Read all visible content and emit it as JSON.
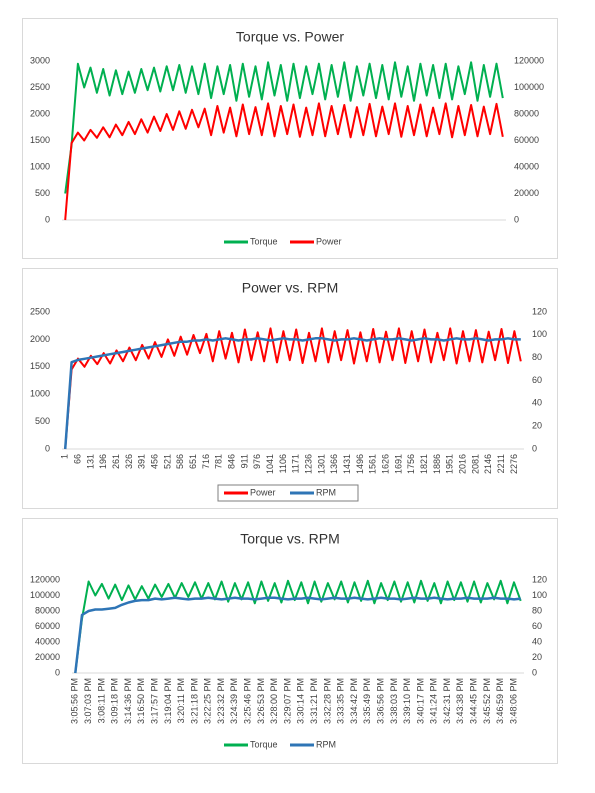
{
  "chart_data": [
    {
      "type": "line",
      "title": "Torque vs. Power",
      "legend": "bottom",
      "ylim": [
        0,
        3000
      ],
      "yticks": [
        0,
        500,
        1000,
        1500,
        2000,
        2500,
        3000
      ],
      "y2lim": [
        0,
        120000
      ],
      "y2ticks": [
        0,
        20000,
        40000,
        60000,
        80000,
        100000,
        120000
      ],
      "series": [
        {
          "name": "Torque",
          "color": "#00b050",
          "axis": "y2",
          "values": [
            20000,
            56000,
            118000,
            100000,
            115000,
            96000,
            114000,
            94000,
            113000,
            95000,
            112000,
            96000,
            114000,
            98000,
            115000,
            97000,
            116000,
            98000,
            117000,
            96000,
            116000,
            95000,
            118000,
            92000,
            116000,
            95000,
            117000,
            90000,
            118000,
            93000,
            116000,
            91000,
            119000,
            94000,
            117000,
            90000,
            118000,
            92000,
            116000,
            95000,
            118000,
            91000,
            117000,
            93000,
            119000,
            90000,
            116000,
            94000,
            118000,
            92000,
            117000,
            91000,
            119000,
            93000,
            116000,
            90000,
            118000,
            94000,
            117000,
            92000,
            118000,
            91000,
            116000,
            95000,
            119000,
            90000,
            117000,
            93000,
            118000,
            92000
          ]
        },
        {
          "name": "Power",
          "color": "#ff0000",
          "values": [
            0,
            1450,
            1650,
            1500,
            1700,
            1550,
            1750,
            1560,
            1800,
            1600,
            1850,
            1620,
            1900,
            1650,
            1950,
            1680,
            2000,
            1700,
            2050,
            1720,
            2080,
            1750,
            2100,
            1600,
            2150,
            1650,
            2120,
            1580,
            2180,
            1620,
            2130,
            1600,
            2200,
            1580,
            2150,
            1620,
            2180,
            1570,
            2120,
            1600,
            2200,
            1580,
            2150,
            1620,
            2170,
            1560,
            2130,
            1600,
            2190,
            1580,
            2140,
            1620,
            2200,
            1570,
            2150,
            1600,
            2180,
            1580,
            2120,
            1620,
            2200,
            1560,
            2150,
            1600,
            2170,
            1580,
            2140,
            1620,
            2190,
            1570
          ]
        }
      ]
    },
    {
      "type": "line",
      "title": "Power vs. RPM",
      "legend": "bottom",
      "ylim": [
        0,
        2500
      ],
      "yticks": [
        0,
        500,
        1000,
        1500,
        2000,
        2500
      ],
      "y2lim": [
        0,
        120
      ],
      "y2ticks": [
        0,
        20,
        40,
        60,
        80,
        100,
        120
      ],
      "categories": [
        "1",
        null,
        "66",
        null,
        "131",
        null,
        "196",
        null,
        "261",
        null,
        "326",
        null,
        "391",
        null,
        "456",
        null,
        "521",
        null,
        "586",
        null,
        "651",
        null,
        "716",
        null,
        "781",
        null,
        "846",
        null,
        "911",
        null,
        "976",
        null,
        "1041",
        null,
        "1106",
        null,
        "1171",
        null,
        "1236",
        null,
        "1301",
        null,
        "1366",
        null,
        "1431",
        null,
        "1496",
        null,
        "1561",
        null,
        "1626",
        null,
        "1691",
        null,
        "1756",
        null,
        "1821",
        null,
        "1886",
        null,
        "1951",
        null,
        "2016",
        null,
        "2081",
        null,
        "2146",
        null,
        "2211",
        null,
        "2276",
        null
      ],
      "series": [
        {
          "name": "Power",
          "color": "#ff0000",
          "values": [
            0,
            1450,
            1650,
            1500,
            1700,
            1550,
            1750,
            1560,
            1800,
            1600,
            1850,
            1620,
            1900,
            1650,
            1950,
            1680,
            2000,
            1700,
            2050,
            1720,
            2080,
            1750,
            2100,
            1600,
            2150,
            1650,
            2120,
            1580,
            2180,
            1620,
            2130,
            1600,
            2200,
            1580,
            2150,
            1620,
            2180,
            1570,
            2120,
            1600,
            2200,
            1580,
            2150,
            1620,
            2170,
            1560,
            2130,
            1600,
            2190,
            1580,
            2140,
            1620,
            2200,
            1570,
            2150,
            1600,
            2180,
            1580,
            2120,
            1620,
            2200,
            1560,
            2150,
            1600,
            2170,
            1580,
            2140,
            1620,
            2190,
            1570,
            2150,
            1600
          ]
        },
        {
          "name": "RPM",
          "color": "#2e75b6",
          "axis": "y2",
          "values": [
            0,
            76,
            78,
            79,
            80,
            81,
            82,
            83,
            84,
            85,
            86,
            87,
            88,
            89,
            90,
            91,
            92,
            93,
            94,
            94,
            95,
            95,
            96,
            95,
            96,
            97,
            96,
            95,
            96,
            96,
            97,
            96,
            95,
            96,
            97,
            96,
            96,
            95,
            96,
            97,
            97,
            96,
            95,
            96,
            96,
            97,
            96,
            95,
            96,
            97,
            96,
            96,
            97,
            96,
            95,
            96,
            97,
            96,
            96,
            95,
            96,
            97,
            96,
            96,
            97,
            96,
            95,
            96,
            96,
            97,
            96,
            96
          ]
        }
      ]
    },
    {
      "type": "line",
      "title": "Torque vs. RPM",
      "legend": "bottom",
      "ylim": [
        0,
        120000
      ],
      "yticks": [
        0,
        20000,
        40000,
        60000,
        80000,
        100000,
        120000
      ],
      "y2lim": [
        0,
        120
      ],
      "y2ticks": [
        0,
        20,
        40,
        60,
        80,
        100,
        120
      ],
      "categories": [
        "3:05:56 PM",
        null,
        "3:07:03 PM",
        null,
        "3:08:11 PM",
        null,
        "3:09:18 PM",
        null,
        "3:14:36 PM",
        null,
        "3:16:50 PM",
        null,
        "3:17:57 PM",
        null,
        "3:19:04 PM",
        null,
        "3:20:11 PM",
        null,
        "3:21:18 PM",
        null,
        "3:22:25 PM",
        null,
        "3:23:32 PM",
        null,
        "3:24:39 PM",
        null,
        "3:25:46 PM",
        null,
        "3:26:53 PM",
        null,
        "3:28:00 PM",
        null,
        "3:29:07 PM",
        null,
        "3:30:14 PM",
        null,
        "3:31:21 PM",
        null,
        "3:32:28 PM",
        null,
        "3:33:35 PM",
        null,
        "3:34:42 PM",
        null,
        "3:35:49 PM",
        null,
        "3:36:56 PM",
        null,
        "3:38:03 PM",
        null,
        "3:39:10 PM",
        null,
        "3:40:17 PM",
        null,
        "3:41:24 PM",
        null,
        "3:42:31 PM",
        null,
        "3:43:38 PM",
        null,
        "3:44:45 PM",
        null,
        "3:45:52 PM",
        null,
        "3:46:59 PM",
        null,
        "3:48:06 PM",
        null
      ],
      "series": [
        {
          "name": "Torque",
          "color": "#00b050",
          "values": [
            0,
            70000,
            118000,
            100000,
            115000,
            96000,
            114000,
            94000,
            113000,
            95000,
            112000,
            96000,
            114000,
            98000,
            115000,
            97000,
            116000,
            98000,
            117000,
            96000,
            116000,
            95000,
            118000,
            92000,
            116000,
            95000,
            117000,
            90000,
            118000,
            93000,
            116000,
            91000,
            119000,
            94000,
            117000,
            90000,
            118000,
            92000,
            116000,
            95000,
            118000,
            91000,
            117000,
            93000,
            119000,
            90000,
            116000,
            94000,
            118000,
            92000,
            117000,
            91000,
            119000,
            93000,
            116000,
            90000,
            118000,
            94000,
            117000,
            92000,
            118000,
            91000,
            116000,
            95000,
            119000,
            90000,
            117000,
            93000
          ]
        },
        {
          "name": "RPM",
          "color": "#2e75b6",
          "axis": "y2",
          "values": [
            0,
            75,
            80,
            82,
            82,
            83,
            84,
            88,
            91,
            93,
            94,
            94,
            96,
            95,
            96,
            97,
            96,
            95,
            96,
            96,
            97,
            96,
            95,
            96,
            97,
            96,
            96,
            95,
            96,
            97,
            97,
            96,
            95,
            96,
            96,
            97,
            96,
            95,
            96,
            97,
            96,
            96,
            97,
            96,
            95,
            96,
            97,
            96,
            96,
            95,
            96,
            97,
            96,
            96,
            97,
            96,
            95,
            96,
            96,
            97,
            96,
            96,
            96,
            97,
            96,
            96,
            95,
            96
          ]
        }
      ]
    }
  ]
}
